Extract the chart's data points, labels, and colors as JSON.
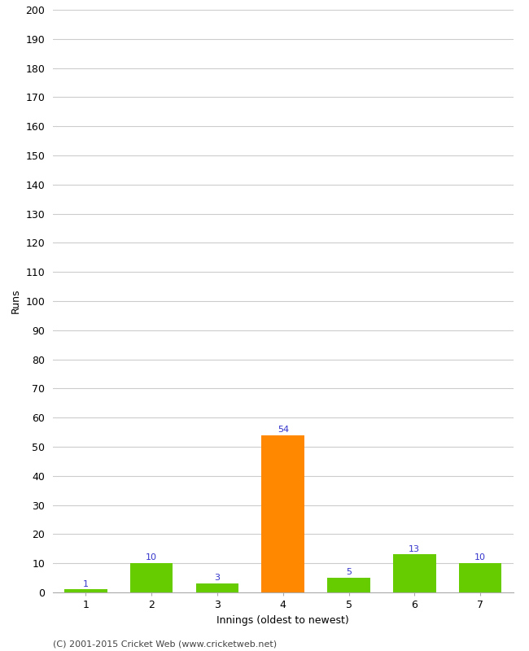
{
  "innings": [
    1,
    2,
    3,
    4,
    5,
    6,
    7
  ],
  "runs": [
    1,
    10,
    3,
    54,
    5,
    13,
    10
  ],
  "bar_colors": [
    "#66cc00",
    "#66cc00",
    "#66cc00",
    "#ff8800",
    "#66cc00",
    "#66cc00",
    "#66cc00"
  ],
  "xlabel": "Innings (oldest to newest)",
  "ylabel": "Runs",
  "ylim": [
    0,
    200
  ],
  "yticks": [
    0,
    10,
    20,
    30,
    40,
    50,
    60,
    70,
    80,
    90,
    100,
    110,
    120,
    130,
    140,
    150,
    160,
    170,
    180,
    190,
    200
  ],
  "value_color": "#3333cc",
  "value_fontsize": 8,
  "axis_label_fontsize": 9,
  "footer": "(C) 2001-2015 Cricket Web (www.cricketweb.net)",
  "background_color": "#ffffff",
  "grid_color": "#cccccc",
  "bar_width": 0.65,
  "tick_label_fontsize": 9
}
